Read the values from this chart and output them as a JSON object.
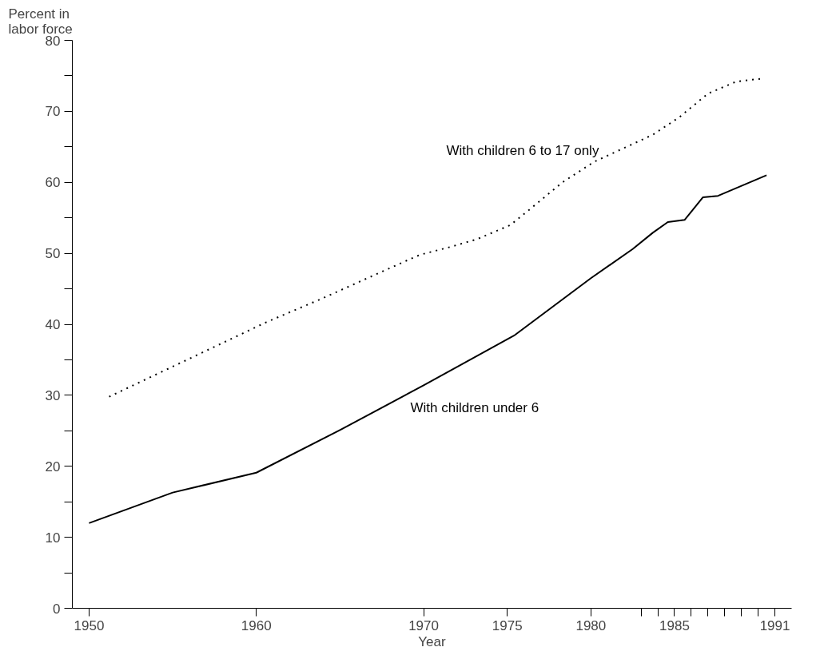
{
  "chart_data": {
    "type": "line",
    "xlabel": "Year",
    "ylabel": "Percent in\nlabor force",
    "xlim": [
      1949,
      1992
    ],
    "ylim": [
      0,
      80
    ],
    "xticks": [
      1950,
      1960,
      1970,
      1975,
      1980,
      {
        "value": 1983,
        "label": null
      },
      {
        "value": 1984,
        "label": null
      },
      1985,
      {
        "value": 1986,
        "label": null
      },
      {
        "value": 1987,
        "label": null
      },
      {
        "value": 1988,
        "label": null
      },
      {
        "value": 1989,
        "label": null
      },
      {
        "value": 1990,
        "label": null
      },
      1991
    ],
    "yticks": [
      0,
      {
        "value": 5,
        "label": null
      },
      10,
      {
        "value": 15,
        "label": null
      },
      20,
      {
        "value": 25,
        "label": null
      },
      30,
      {
        "value": 35,
        "label": null
      },
      40,
      {
        "value": 45,
        "label": null
      },
      50,
      {
        "value": 55,
        "label": null
      },
      60,
      {
        "value": 65,
        "label": null
      },
      70,
      {
        "value": 75,
        "label": null
      },
      80
    ],
    "grid": false,
    "marker": "none",
    "series": [
      {
        "name": "With children 6 to 17 only",
        "color": "#000000",
        "line_style": "dotted",
        "x": [
          1951.2,
          1960.6,
          1963.8,
          1969.2,
          1969.8,
          1971.6,
          1973.2,
          1975.2,
          1976.5,
          1978.3,
          1980.2,
          1983.7,
          1985.3,
          1987.0,
          1988.7,
          1990.2
        ],
        "values": [
          29.8,
          40.3,
          43.5,
          49.2,
          49.8,
          50.9,
          52.0,
          54.0,
          56.5,
          60.0,
          62.9,
          66.7,
          69.2,
          72.5,
          74.2,
          74.6
        ]
      },
      {
        "name": "With children under 6",
        "color": "#000000",
        "line_style": "solid",
        "x": [
          1950,
          1955,
          1960,
          1965,
          1970,
          1975.4,
          1980,
          1982.5,
          1983.7,
          1984.6,
          1985.6,
          1986.7,
          1987.6,
          1990.5
        ],
        "values": [
          12.0,
          16.3,
          19.1,
          25.1,
          31.4,
          38.4,
          46.5,
          50.6,
          52.9,
          54.4,
          54.7,
          57.9,
          58.1,
          61.0
        ]
      }
    ]
  }
}
